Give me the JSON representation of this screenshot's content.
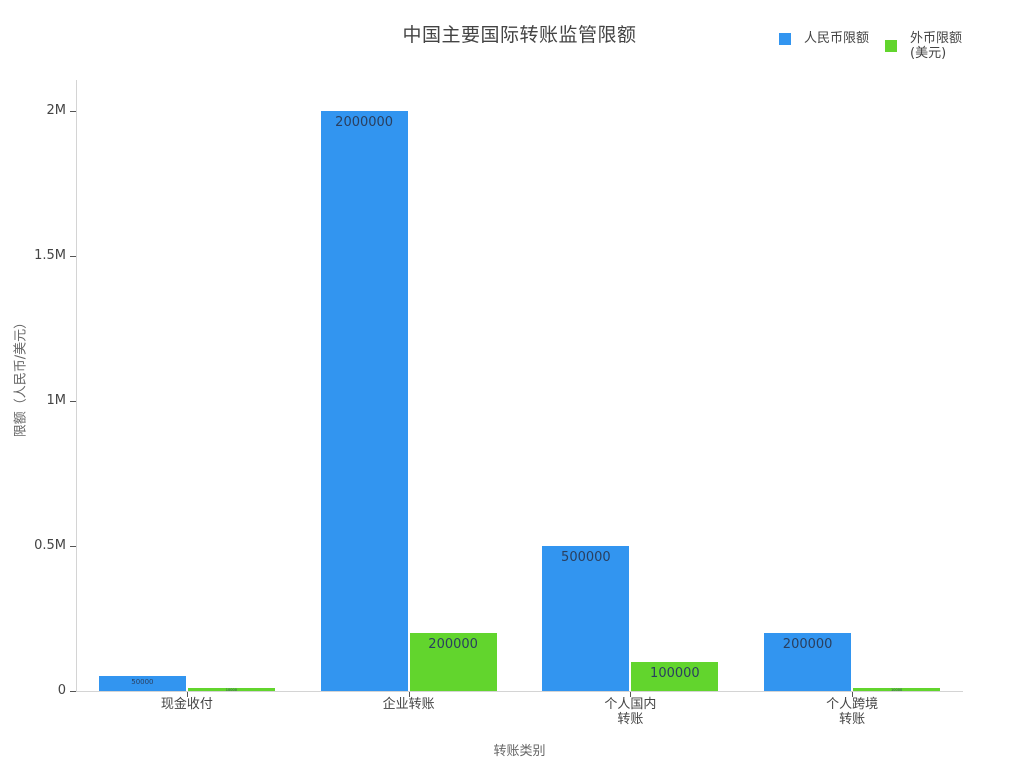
{
  "page": {
    "background": "#ffffff"
  },
  "chart_data": {
    "type": "bar",
    "title": "中国主要国际转账监管限额",
    "xlabel": "转账类别",
    "ylabel": "限额（人民币/美元）",
    "categories": [
      "现金收付",
      "企业转账",
      "个人国内\n转账",
      "个人跨境\n转账"
    ],
    "series": [
      {
        "name": "人民币限额",
        "color": "#3295f0",
        "values": [
          50000,
          2000000,
          500000,
          200000
        ]
      },
      {
        "name": "外币限额（美元）",
        "color": "#62d52d",
        "values": [
          10000,
          200000,
          100000,
          10000
        ]
      }
    ],
    "value_labels": "inside-top",
    "ylim": [
      0,
      2000000
    ],
    "yticks": [
      {
        "value": 0,
        "label": "0"
      },
      {
        "value": 500000,
        "label": "0.5M"
      },
      {
        "value": 1000000,
        "label": "1M"
      },
      {
        "value": 1500000,
        "label": "1.5M"
      },
      {
        "value": 2000000,
        "label": "2M"
      }
    ],
    "grid": false,
    "legend": {
      "position": "top-right",
      "items": [
        {
          "lines": [
            "人民币限额"
          ],
          "color": "#3295f0"
        },
        {
          "lines": [
            "外币限额",
            "(美元)"
          ],
          "color": "#62d52d"
        }
      ]
    }
  },
  "colors": {
    "title_text": "#444444",
    "tick_text": "#444444",
    "axis_title_text": "#666666",
    "axis_line": "#d4d4d4",
    "tick_mark": "#555555",
    "bar_label_text": "#2a3f5f",
    "legend_text": "#444444"
  }
}
